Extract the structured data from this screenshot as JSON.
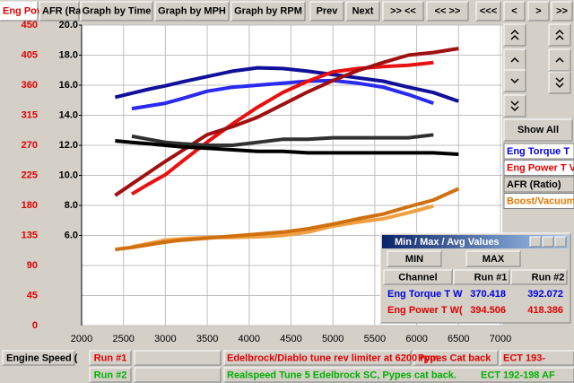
{
  "toolbar": {
    "tabs": [
      "Eng Pov",
      "AFR (Ra"
    ],
    "buttons": [
      "Graph by Time",
      "Graph by MPH",
      "Graph by RPM",
      "Prev",
      "Next",
      ">> <<",
      "<< >>",
      "<<<",
      "<",
      ">",
      ">>"
    ]
  },
  "chart_data": {
    "type": "line",
    "x": [
      2400,
      2600,
      2800,
      3000,
      3200,
      3500,
      3800,
      4100,
      4400,
      4700,
      5000,
      5300,
      5600,
      5900,
      6200,
      6500
    ],
    "xlim": [
      2000,
      7000
    ],
    "xticks": [
      2000,
      2500,
      3000,
      3500,
      4000,
      4500,
      5000,
      5500,
      6000,
      6500,
      7000
    ],
    "ylim": [
      0,
      450
    ],
    "yticks": [
      0,
      45,
      90,
      135,
      180,
      225,
      270,
      315,
      360,
      405,
      450
    ],
    "ytick_color": "#e00000",
    "y2lim": [
      0,
      20
    ],
    "y2ticks": [
      {
        "value": 6,
        "label": "6.0"
      },
      {
        "value": 8,
        "label": "8.0"
      },
      {
        "value": 10,
        "label": "10.0"
      },
      {
        "value": 12,
        "label": "12.0"
      },
      {
        "value": 14,
        "label": "14.0"
      },
      {
        "value": 16,
        "label": "16.0"
      },
      {
        "value": 18,
        "label": "18.0"
      },
      {
        "value": 20,
        "label": "20.0"
      }
    ],
    "grid": true,
    "series": [
      {
        "name": "Eng Torque T",
        "color": "#0000e0",
        "runs": [
          {
            "color": "#2a2af0",
            "values": [
              null,
              325,
              329,
              333,
              340,
              351,
              357,
              360,
              363,
              366,
              367,
              363,
              357,
              346,
              333,
              null
            ]
          },
          {
            "color": "#10109a",
            "values": [
              342,
              348,
              354,
              359,
              365,
              373,
              381,
              386,
              385,
              381,
              376,
              371,
              366,
              357,
              349,
              336
            ]
          }
        ]
      },
      {
        "name": "Eng Power T V",
        "color": "#e00000",
        "runs": [
          {
            "color": "#e81010",
            "values": [
              null,
              197,
              212,
              226,
              246,
              275,
              302,
              327,
              349,
              366,
              380,
              385,
              388,
              390,
              394,
              null
            ]
          },
          {
            "color": "#a01010",
            "values": [
              195,
              212,
              229,
              246,
              262,
              286,
              298,
              312,
              331,
              350,
              367,
              382,
              394,
              405,
              409,
              415
            ]
          }
        ]
      },
      {
        "name": "AFR (Ratio)",
        "color": "#000000",
        "axis": "y2",
        "runs": [
          {
            "color": "#303030",
            "values": [
              null,
              12.6,
              12.4,
              12.2,
              12.1,
              12.0,
              12.0,
              12.2,
              12.4,
              12.4,
              12.5,
              12.5,
              12.5,
              12.5,
              12.7,
              null
            ]
          },
          {
            "color": "#000000",
            "values": [
              12.3,
              12.2,
              12.1,
              12.0,
              11.9,
              11.8,
              11.7,
              11.6,
              11.6,
              11.5,
              11.5,
              11.5,
              11.5,
              11.5,
              11.5,
              11.4
            ]
          }
        ]
      },
      {
        "name": "Boost/Vacuum",
        "color": "#e07800",
        "runs": [
          {
            "color": "#f0a040",
            "values": [
              null,
              118,
              123,
              128,
              130,
              132,
              132,
              133,
              135,
              140,
              149,
              155,
              160,
              169,
              179,
              null
            ]
          },
          {
            "color": "#d07010",
            "values": [
              114,
              117,
              121,
              125,
              128,
              131,
              134,
              137,
              140,
              145,
              152,
              160,
              167,
              178,
              188,
              205
            ]
          }
        ]
      }
    ]
  },
  "side_panel": {
    "show_all": "Show All"
  },
  "min_max_window": {
    "title": "Min / Max / Avg Values",
    "buttons": [
      "MIN",
      "MAX"
    ],
    "columns": [
      "Channel",
      "Run #1",
      "Run #2"
    ],
    "rows": [
      {
        "color": "#0000e0",
        "cells": [
          "Eng Torque T W",
          "370.418",
          "392.072"
        ]
      },
      {
        "color": "#e00000",
        "cells": [
          "Eng Power T W(",
          "394.506",
          "418.386"
        ]
      }
    ]
  },
  "footer": {
    "channel": "Engine Speed (",
    "runs": [
      {
        "name": "Run #1",
        "color": "#e00000",
        "notes": [
          "Edelbrock/Diablo tune rev limiter at 6200 rpm.",
          "Pypes Cat back",
          "ECT 193-"
        ]
      },
      {
        "name": "Run #2",
        "color": "#00b000",
        "notes": [
          "Realspeed Tune 5 Edelbrock SC, Pypes cat back.",
          "ECT 192-198  AF"
        ]
      }
    ]
  }
}
